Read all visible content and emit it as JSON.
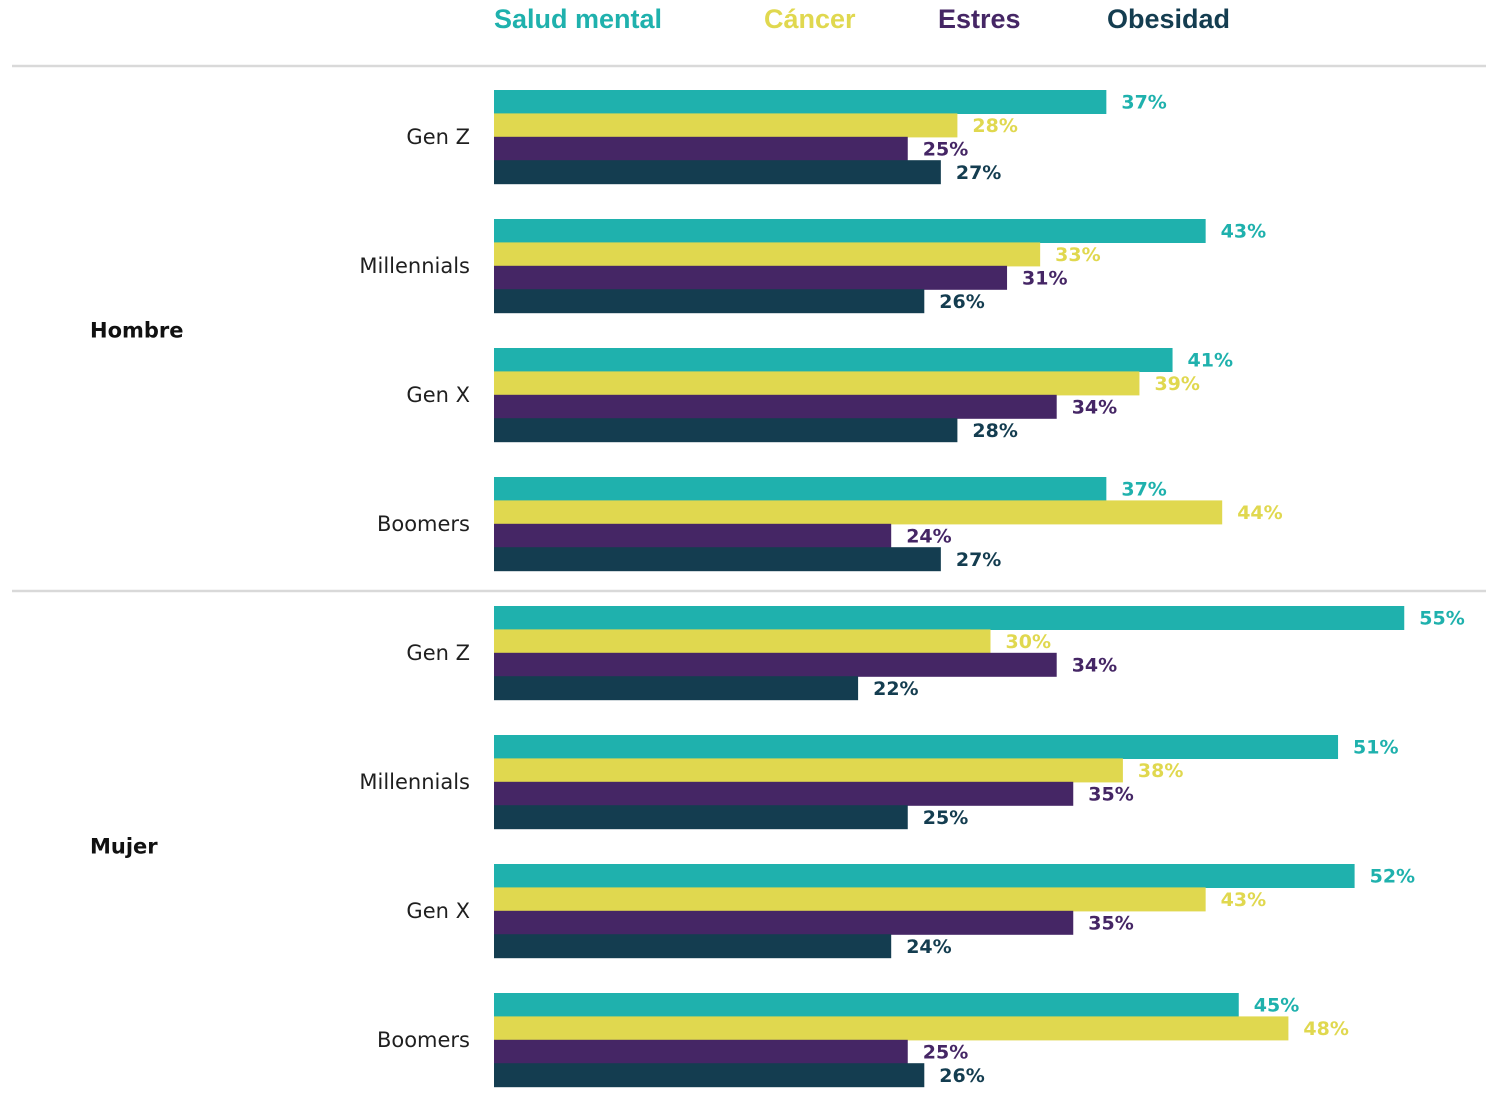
{
  "chart_data": {
    "type": "bar",
    "orientation": "horizontal",
    "grid": false,
    "legend_position": "top",
    "value_suffix": "%",
    "series": [
      {
        "name": "Salud mental",
        "color": "#1fb1ad"
      },
      {
        "name": "Cáncer",
        "color": "#e0d84f"
      },
      {
        "name": "Estres",
        "color": "#452665"
      },
      {
        "name": "Obesidad",
        "color": "#143d50"
      }
    ],
    "groups": [
      {
        "label": "Hombre",
        "categories": [
          {
            "label": "Gen Z",
            "values": [
              37,
              28,
              25,
              27
            ],
            "value_labels": [
              "37%",
              "28%",
              "25%",
              "27%"
            ]
          },
          {
            "label": "Millennials",
            "values": [
              43,
              33,
              31,
              26
            ],
            "value_labels": [
              "43%",
              "33%",
              "31%",
              "26%"
            ]
          },
          {
            "label": "Gen X",
            "values": [
              41,
              39,
              34,
              28
            ],
            "value_labels": [
              "41%",
              "39%",
              "34%",
              "28%"
            ]
          },
          {
            "label": "Boomers",
            "values": [
              37,
              44,
              24,
              27
            ],
            "value_labels": [
              "37%",
              "44%",
              "24%",
              "27%"
            ]
          }
        ]
      },
      {
        "label": "Mujer",
        "categories": [
          {
            "label": "Gen Z",
            "values": [
              55,
              30,
              34,
              22
            ],
            "value_labels": [
              "55%",
              "30%",
              "34%",
              "22%"
            ]
          },
          {
            "label": "Millennials",
            "values": [
              51,
              38,
              35,
              25
            ],
            "value_labels": [
              "51%",
              "38%",
              "35%",
              "25%"
            ]
          },
          {
            "label": "Gen X",
            "values": [
              52,
              43,
              35,
              24
            ],
            "value_labels": [
              "52%",
              "43%",
              "35%",
              "24%"
            ]
          },
          {
            "label": "Boomers",
            "values": [
              45,
              48,
              25,
              26
            ],
            "value_labels": [
              "45%",
              "48%",
              "25%",
              "26%"
            ]
          }
        ]
      }
    ],
    "divider_color": "#d9d9d9"
  }
}
